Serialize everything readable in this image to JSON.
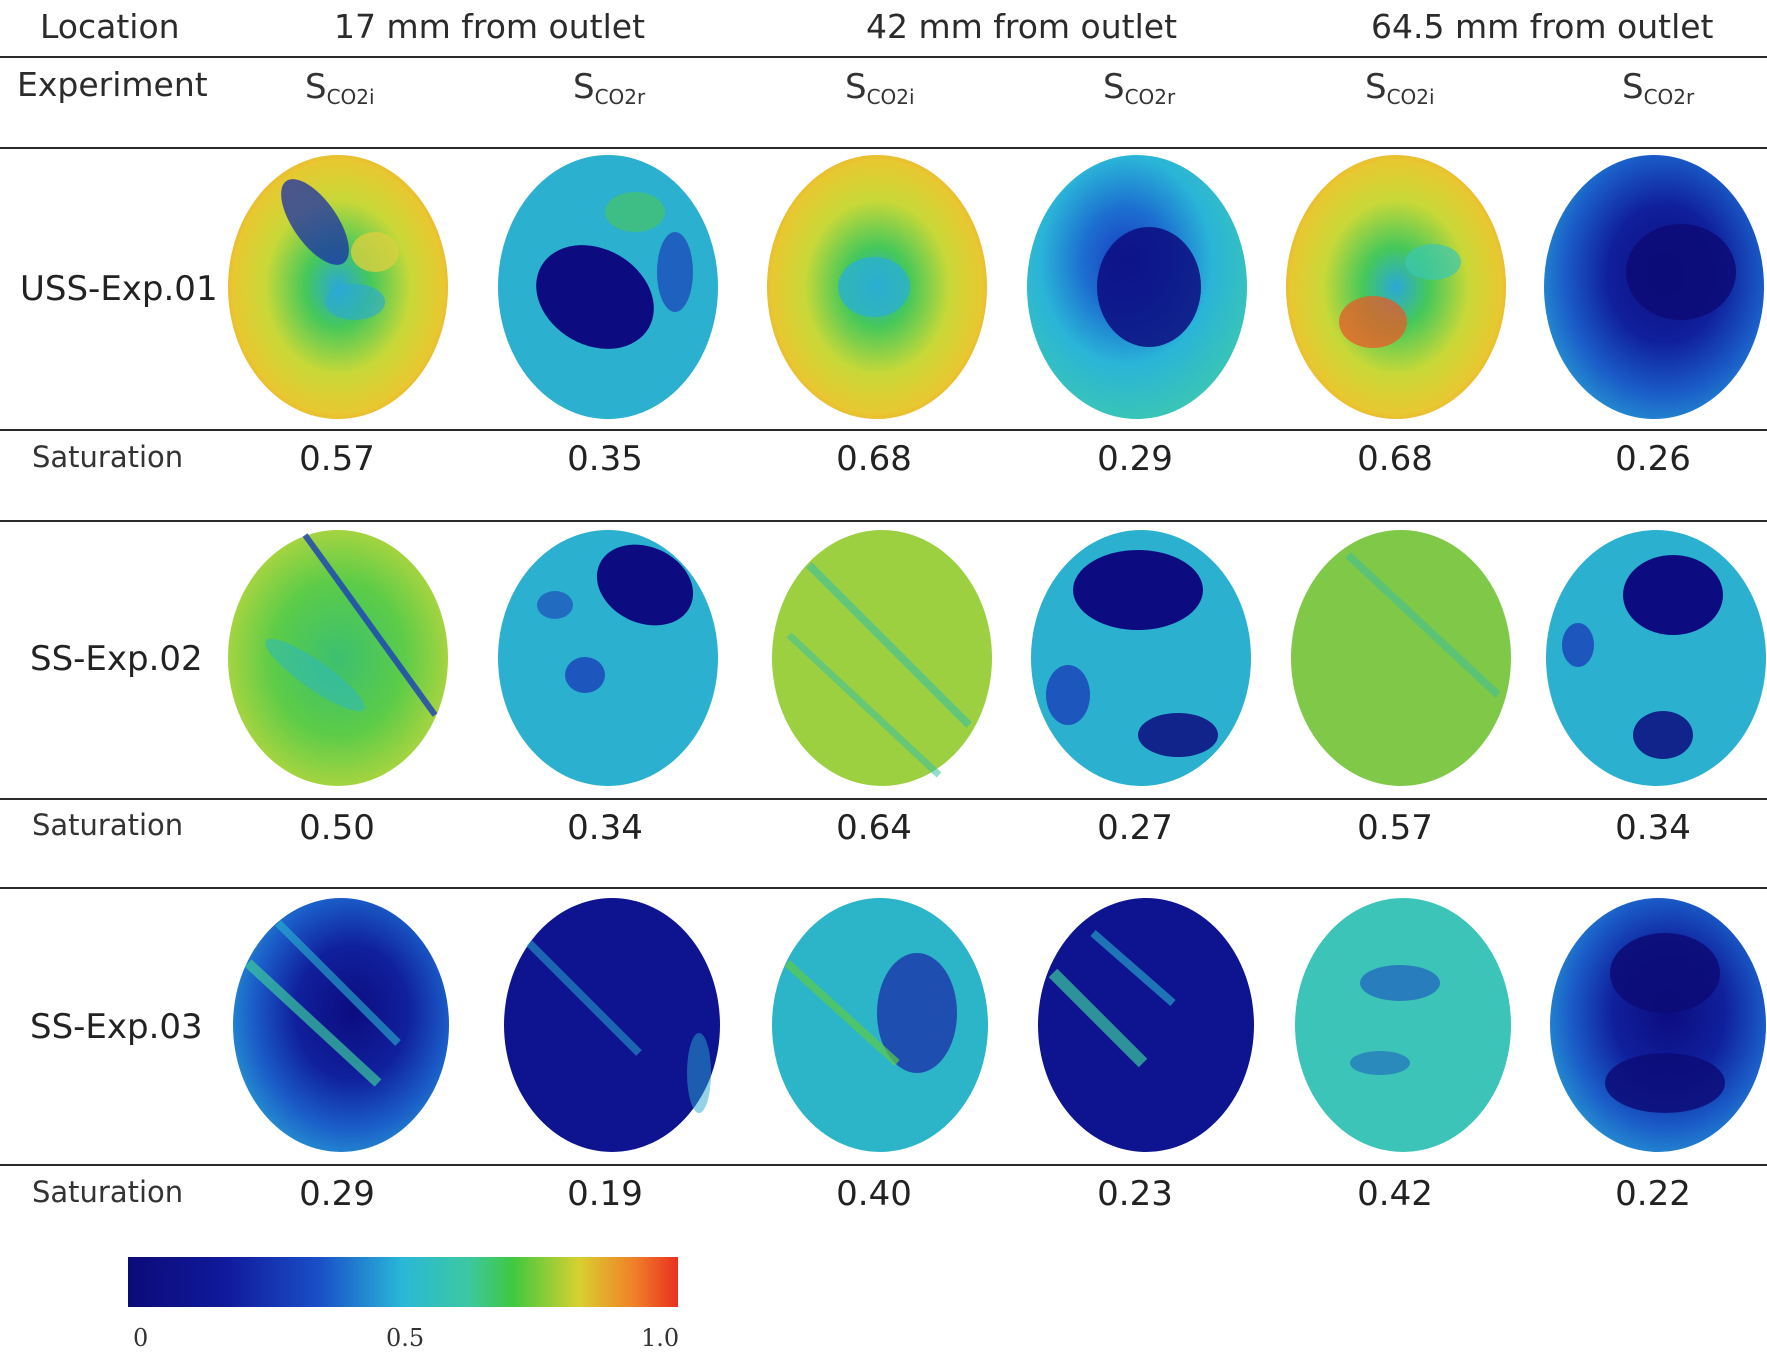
{
  "header": {
    "location_label": "Location",
    "experiment_label": "Experiment",
    "locations": [
      "17 mm from outlet",
      "42 mm from outlet",
      "64.5 mm from outlet"
    ],
    "columns": [
      {
        "symbol": "S",
        "sub": "CO2i"
      },
      {
        "symbol": "S",
        "sub": "CO2r"
      },
      {
        "symbol": "S",
        "sub": "CO2i"
      },
      {
        "symbol": "S",
        "sub": "CO2r"
      },
      {
        "symbol": "S",
        "sub": "CO2i"
      },
      {
        "symbol": "S",
        "sub": "CO2r"
      }
    ]
  },
  "rows": [
    {
      "label": "USS-Exp.01",
      "saturation_label": "Saturation",
      "values": [
        "0.57",
        "0.35",
        "0.68",
        "0.29",
        "0.68",
        "0.26"
      ]
    },
    {
      "label": "SS-Exp.02",
      "saturation_label": "Saturation",
      "values": [
        "0.50",
        "0.34",
        "0.64",
        "0.27",
        "0.57",
        "0.34"
      ]
    },
    {
      "label": "SS-Exp.03",
      "saturation_label": "Saturation",
      "values": [
        "0.29",
        "0.19",
        "0.40",
        "0.23",
        "0.42",
        "0.22"
      ]
    }
  ],
  "colorbar": {
    "ticks": [
      "0",
      "0.5",
      "1.0"
    ],
    "colors": [
      "#0c0a78",
      "#1030c8",
      "#28b4d8",
      "#3cc8a0",
      "#40c840",
      "#d8d030",
      "#f07a20",
      "#e83020"
    ]
  }
}
